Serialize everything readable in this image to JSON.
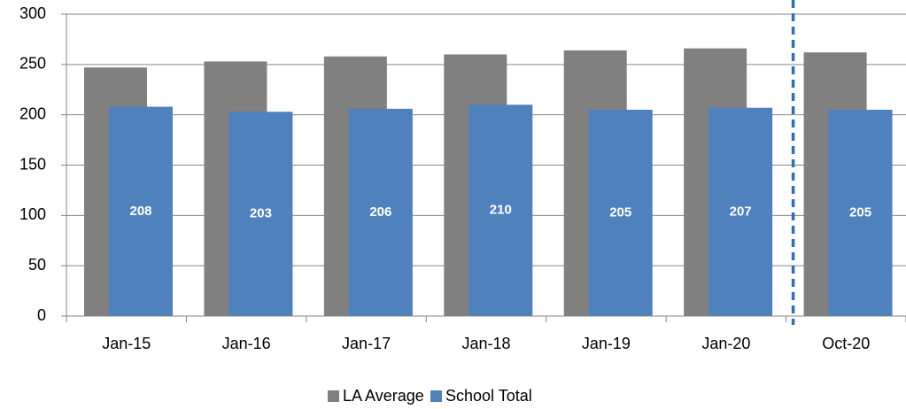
{
  "chart_data": {
    "type": "bar",
    "categories": [
      "Jan-15",
      "Jan-16",
      "Jan-17",
      "Jan-18",
      "Jan-19",
      "Jan-20",
      "Oct-20"
    ],
    "series": [
      {
        "name": "LA Average",
        "color": "#808080",
        "values": [
          247,
          253,
          258,
          260,
          264,
          266,
          262
        ]
      },
      {
        "name": "School Total",
        "color": "#4f81bd",
        "values": [
          208,
          203,
          206,
          210,
          205,
          207,
          205
        ]
      }
    ],
    "ylim": [
      0,
      300
    ],
    "yticks": [
      0,
      50,
      100,
      150,
      200,
      250,
      300
    ],
    "grid": true,
    "legend": "bottom"
  }
}
